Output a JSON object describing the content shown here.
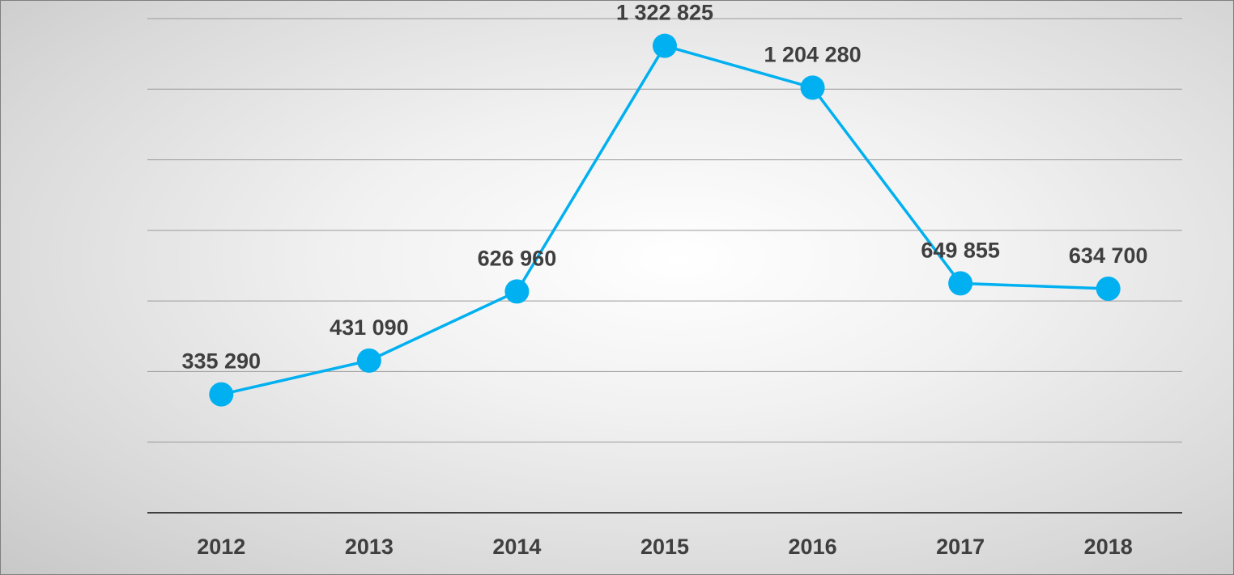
{
  "chart_data": {
    "type": "line",
    "categories": [
      "2012",
      "2013",
      "2014",
      "2015",
      "2016",
      "2017",
      "2018"
    ],
    "values": [
      335290,
      431090,
      626960,
      1322825,
      1204280,
      649855,
      634700
    ],
    "data_labels": [
      "335 290",
      "431 090",
      "626 960",
      "1 322 825",
      "1 204 280",
      "649 855",
      "634 700"
    ],
    "title": "",
    "xlabel": "",
    "ylabel": "",
    "ylim": [
      0,
      1400000
    ],
    "y_tick_step": 200000,
    "grid": true,
    "legend": "none",
    "colors": {
      "series": "#00B0F0",
      "text": "#3F3F3F",
      "grid": "#9A9A9A",
      "axis": "#3F3F3F",
      "frame": "#7F7F7F"
    }
  }
}
